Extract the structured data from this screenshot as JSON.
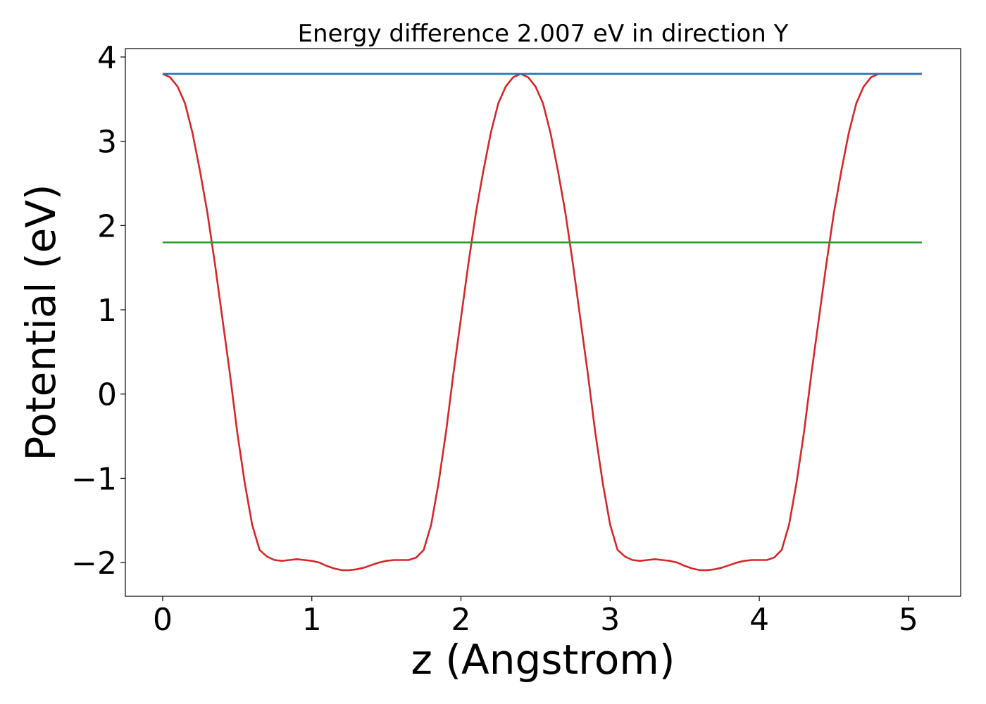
{
  "chart_data": {
    "type": "line",
    "title": "Energy difference 2.007 eV in direction Y",
    "xlabel": "z (Angstrom)",
    "ylabel": "Potential (eV)",
    "xlim": [
      -0.25,
      5.35
    ],
    "ylim": [
      -2.4,
      4.1
    ],
    "xticks": [
      0,
      1,
      2,
      3,
      4,
      5
    ],
    "yticks": [
      -2,
      -1,
      0,
      1,
      2,
      3,
      4
    ],
    "xtick_labels": [
      "0",
      "1",
      "2",
      "3",
      "4",
      "5"
    ],
    "ytick_labels": [
      "−2",
      "−1",
      "0",
      "1",
      "2",
      "3",
      "4"
    ],
    "grid": false,
    "series": [
      {
        "color": "#d62728",
        "x": [
          0.0,
          0.05,
          0.1,
          0.15,
          0.2,
          0.25,
          0.3,
          0.35,
          0.4,
          0.45,
          0.5,
          0.55,
          0.6,
          0.65,
          0.7,
          0.75,
          0.8,
          0.85,
          0.9,
          0.95,
          1.0,
          1.05,
          1.1,
          1.15,
          1.2,
          1.25,
          1.3,
          1.35,
          1.4,
          1.45,
          1.5,
          1.55,
          1.6,
          1.65,
          1.7,
          1.75,
          1.8,
          1.85,
          1.9,
          1.95,
          2.0,
          2.05,
          2.1,
          2.15,
          2.2,
          2.25,
          2.3,
          2.35,
          2.4,
          2.45,
          2.5,
          2.55,
          2.6,
          2.65,
          2.7,
          2.75,
          2.8,
          2.85,
          2.9,
          2.95,
          3.0,
          3.05,
          3.1,
          3.15,
          3.2,
          3.25,
          3.3,
          3.35,
          3.4,
          3.45,
          3.5,
          3.55,
          3.6,
          3.65,
          3.7,
          3.75,
          3.8,
          3.85,
          3.9,
          3.95,
          4.0,
          4.05,
          4.1,
          4.15,
          4.2,
          4.25,
          4.3,
          4.35,
          4.4,
          4.45,
          4.5,
          4.55,
          4.6,
          4.65,
          4.7,
          4.75,
          4.8,
          4.85,
          4.9,
          4.95,
          5.0,
          5.05,
          5.09
        ],
        "y": [
          3.8,
          3.76,
          3.65,
          3.45,
          3.1,
          2.65,
          2.15,
          1.55,
          0.9,
          0.25,
          -0.45,
          -1.05,
          -1.55,
          -1.85,
          -1.93,
          -1.97,
          -1.98,
          -1.97,
          -1.96,
          -1.97,
          -1.98,
          -2.0,
          -2.04,
          -2.07,
          -2.09,
          -2.09,
          -2.08,
          -2.06,
          -2.03,
          -2.0,
          -1.98,
          -1.97,
          -1.97,
          -1.97,
          -1.94,
          -1.85,
          -1.55,
          -1.05,
          -0.45,
          0.25,
          0.9,
          1.55,
          2.15,
          2.65,
          3.1,
          3.45,
          3.65,
          3.76,
          3.8,
          3.76,
          3.65,
          3.45,
          3.1,
          2.65,
          2.15,
          1.55,
          0.9,
          0.25,
          -0.45,
          -1.05,
          -1.55,
          -1.85,
          -1.93,
          -1.97,
          -1.98,
          -1.97,
          -1.96,
          -1.97,
          -1.98,
          -2.0,
          -2.04,
          -2.07,
          -2.09,
          -2.09,
          -2.08,
          -2.06,
          -2.03,
          -2.0,
          -1.98,
          -1.97,
          -1.97,
          -1.97,
          -1.94,
          -1.85,
          -1.55,
          -1.05,
          -0.45,
          0.25,
          0.9,
          1.55,
          2.15,
          2.65,
          3.1,
          3.45,
          3.65,
          3.76,
          3.8,
          3.8,
          3.8,
          3.8,
          3.8,
          3.8,
          3.8
        ]
      },
      {
        "color": "#1f77b4",
        "x": [
          0.0,
          5.09
        ],
        "y": [
          3.8,
          3.8
        ]
      },
      {
        "color": "#2ca02c",
        "x": [
          0.0,
          5.09
        ],
        "y": [
          1.8,
          1.8
        ]
      }
    ]
  }
}
